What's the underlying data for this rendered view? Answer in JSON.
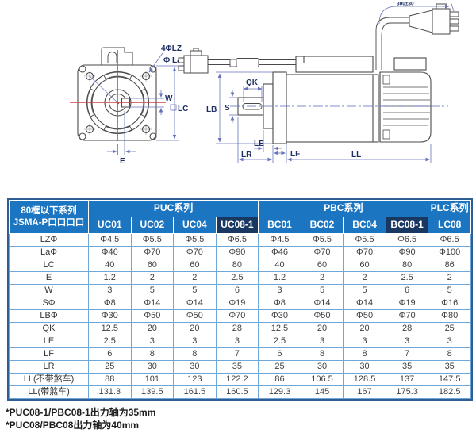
{
  "diagram": {
    "front": {
      "label_holes": "4ΦLZ",
      "label_bolt_circle": "Φ La",
      "label_w": "W",
      "label_lc": "LC",
      "label_e": "E"
    },
    "side": {
      "label_qk": "QK",
      "label_s": "S",
      "label_lb": "LB",
      "label_le": "LE",
      "label_lr": "LR",
      "label_lf": "LF",
      "label_ll": "LL",
      "label_cable": "300±30"
    }
  },
  "table": {
    "corner_header_line1": "80框以下系列",
    "corner_header_line2": "JSMA-P口口口口",
    "groups": [
      {
        "label": "PUC系列",
        "span": 4
      },
      {
        "label": "PBC系列",
        "span": 4
      },
      {
        "label": "PLC系列",
        "span": 1
      }
    ],
    "columns": [
      "UC01",
      "UC02",
      "UC04",
      "UC08-1",
      "BC01",
      "BC02",
      "BC04",
      "BC08-1",
      "LC08"
    ],
    "highlight_columns": [
      3,
      7
    ],
    "rows": [
      {
        "label": "LZΦ",
        "values": [
          "Φ4.5",
          "Φ5.5",
          "Φ5.5",
          "Φ6.5",
          "Φ4.5",
          "Φ5.5",
          "Φ5.5",
          "Φ6.5",
          "Φ6.5"
        ]
      },
      {
        "label": "LaΦ",
        "values": [
          "Φ46",
          "Φ70",
          "Φ70",
          "Φ90",
          "Φ46",
          "Φ70",
          "Φ70",
          "Φ90",
          "Φ100"
        ]
      },
      {
        "label": "LC",
        "values": [
          "40",
          "60",
          "60",
          "80",
          "40",
          "60",
          "60",
          "80",
          "86"
        ]
      },
      {
        "label": "E",
        "values": [
          "1.2",
          "2",
          "2",
          "2.5",
          "1.2",
          "2",
          "2",
          "2.5",
          "2"
        ]
      },
      {
        "label": "W",
        "values": [
          "3",
          "5",
          "5",
          "6",
          "3",
          "5",
          "5",
          "6",
          "5"
        ]
      },
      {
        "label": "SΦ",
        "values": [
          "Φ8",
          "Φ14",
          "Φ14",
          "Φ19",
          "Φ8",
          "Φ14",
          "Φ14",
          "Φ19",
          "Φ16"
        ]
      },
      {
        "label": "LBΦ",
        "values": [
          "Φ30",
          "Φ50",
          "Φ50",
          "Φ70",
          "Φ30",
          "Φ50",
          "Φ50",
          "Φ70",
          "Φ80"
        ]
      },
      {
        "label": "QK",
        "values": [
          "12.5",
          "20",
          "20",
          "28",
          "12.5",
          "20",
          "20",
          "28",
          "25"
        ]
      },
      {
        "label": "LE",
        "values": [
          "2.5",
          "3",
          "3",
          "3",
          "2.5",
          "3",
          "3",
          "3",
          "3"
        ]
      },
      {
        "label": "LF",
        "values": [
          "6",
          "8",
          "8",
          "7",
          "6",
          "8",
          "8",
          "7",
          "8"
        ]
      },
      {
        "label": "LR",
        "values": [
          "25",
          "30",
          "30",
          "35",
          "25",
          "30",
          "30",
          "35",
          "35"
        ]
      },
      {
        "label": "LL(不带煞车)",
        "values": [
          "88",
          "101",
          "123",
          "122.2",
          "86",
          "106.5",
          "128.5",
          "137",
          "147.5"
        ]
      },
      {
        "label": "LL(带煞车)",
        "values": [
          "131.3",
          "139.5",
          "161.5",
          "160.5",
          "129.3",
          "145",
          "167",
          "175.3",
          "182.5"
        ]
      }
    ]
  },
  "footnotes": [
    "*PUC08-1/PBC08-1出力轴为35mm",
    "*PUC08/PBC08出力轴为40mm"
  ],
  "colors": {
    "header_blue": "#1b75c0",
    "header_dark": "#183862",
    "grid": "#6fa8d8",
    "outer_border": "#2f5e94",
    "dim": "#6673b8",
    "dim_label": "#1d2f63",
    "outline": "#4a4a4a",
    "centerline_red": "#cc4444",
    "body_text": "#3f3f3f"
  }
}
